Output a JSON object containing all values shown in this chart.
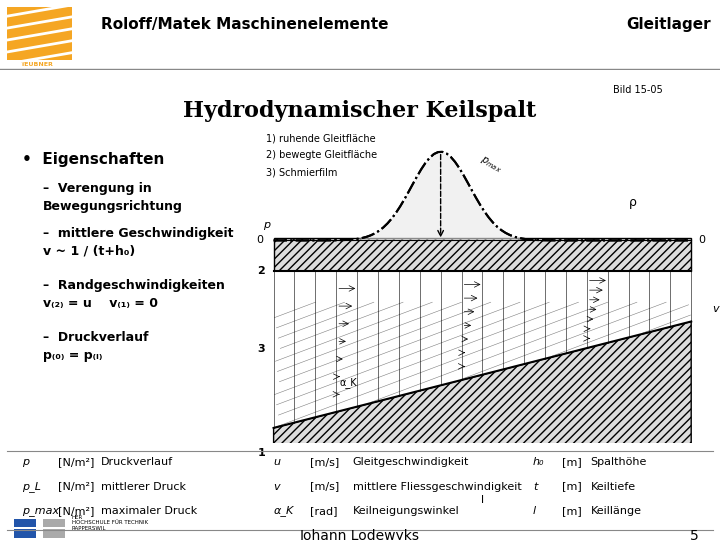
{
  "title_main": "Roloff/Matek Maschinenelemente",
  "title_right": "Gleitlager",
  "slide_title": "Hydrodynamischer Keilspalt",
  "bild_label": "Bild 15-05",
  "bullet_title": "Eigenschaften",
  "bullet_points": [
    "Verengung in\nBewegungsrichtung",
    "mittlere Geschwindigkeit\nv ~ 1 / (t+h₀)",
    "Randgeschwindigkeiten\nv₊₂₋ = u    v₊₁₋ = 0",
    "Druckverlauf\np₊₀₋ = p₊ₗ₋"
  ],
  "legend_lines": [
    "1) ruhende Gleitfläche",
    "2) bewegte Gleitfläche",
    "3) Schmierfilm"
  ],
  "footer_symbols": [
    [
      "p",
      "[N/m^2]",
      "Druckverlauf"
    ],
    [
      "p_L",
      "[N/m^2]",
      "mittlerer Druck"
    ],
    [
      "p_max",
      "[N/m^2]",
      "maximaler Druck"
    ]
  ],
  "footer_symbols2": [
    [
      "u",
      "[m/s]",
      "Gleitgeschwindigkeit"
    ],
    [
      "v",
      "[m/s]",
      "mittlere Fliessgeschwindigkeit"
    ],
    [
      "α_K",
      "[rad]",
      "Keilneigungswinkel"
    ]
  ],
  "footer_symbols3": [
    [
      "h₀",
      "[m]",
      "Spalthöhe"
    ],
    [
      "t",
      "[m]",
      "Keiltiefe"
    ],
    [
      "l",
      "[m]",
      "Keilänge"
    ]
  ],
  "footer_author": "Johann Lodewyks",
  "footer_page": "5",
  "header_color": "#F5A623",
  "bg_color": "#FFFFFF",
  "text_color": "#000000",
  "header_line_color": "#AAAAAA"
}
